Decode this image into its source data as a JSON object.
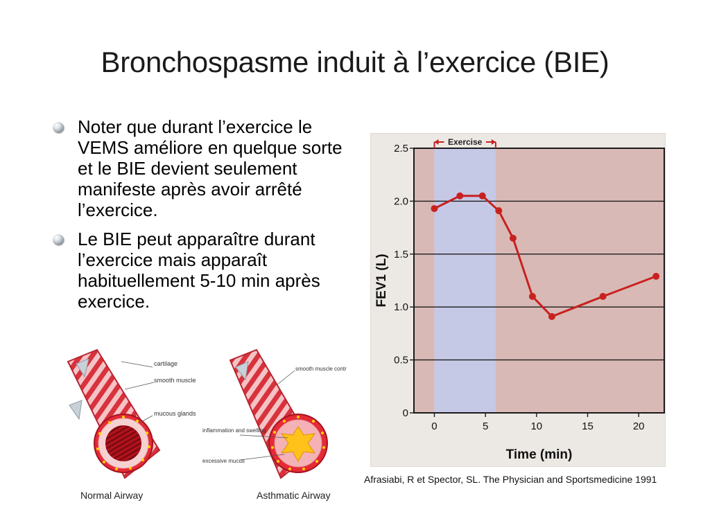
{
  "slide": {
    "title": "Bronchospasme induit à l’exercice (BIE)",
    "bullets": [
      "Noter que durant l’exercice le VEMS améliore en quelque sorte et le BIE devient seulement manifeste après avoir arrêté l’exercice.",
      "Le BIE peut apparaître durant l’exercice mais apparaît habituellement 5-10 min après exercice."
    ],
    "citation": "Afrasiabi, R et Spector, SL. The Physician and Sportsmedicine 1991"
  },
  "airway_illustration": {
    "normal": {
      "caption": "Normal Airway",
      "labels": [
        "cartilage",
        "smooth muscle",
        "mucous glands"
      ]
    },
    "asthmatic": {
      "caption": "Asthmatic Airway",
      "labels": [
        "smooth muscle contract",
        "inflammation and swelling",
        "excessive mucus"
      ]
    }
  },
  "chart_data": {
    "type": "line",
    "xlabel": "Time (min)",
    "ylabel": "FEV1 (L)",
    "xlim": [
      -2,
      22.5
    ],
    "ylim": [
      0,
      2.5
    ],
    "xticks": [
      0,
      5,
      10,
      15,
      20
    ],
    "yticks": [
      0,
      0.5,
      1.0,
      1.5,
      2.0,
      2.5
    ],
    "ytick_labels": [
      "0",
      "0.5",
      "1.0",
      "1.5",
      "2.0",
      "2.5"
    ],
    "grid": "horizontal",
    "exercise_band": {
      "label": "Exercise",
      "start": 0,
      "end": 6
    },
    "series": [
      {
        "x": [
          0,
          2.5,
          4.7,
          6.3,
          7.7,
          9.6,
          11.5,
          16.5,
          21.7
        ],
        "y": [
          1.93,
          2.05,
          2.05,
          1.91,
          1.65,
          1.1,
          0.91,
          1.1,
          1.29
        ]
      }
    ],
    "colors": {
      "line": "#c8211f",
      "exercise_band": "#c6c9e6",
      "background": "#d9b9b6",
      "frame": "#1a1a1a"
    }
  }
}
